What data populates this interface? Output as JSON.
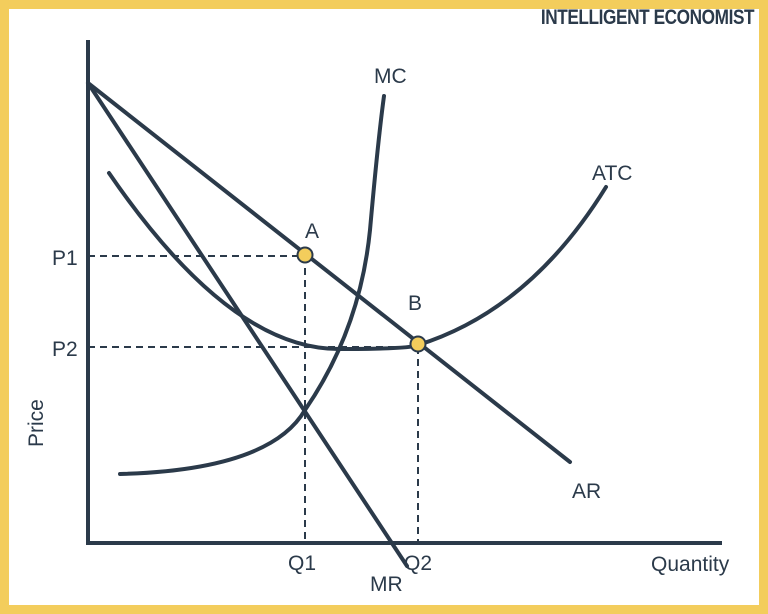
{
  "brand": "INTELLIGENT ECONOMIST",
  "axes": {
    "y_label": "Price",
    "x_label": "Quantity"
  },
  "curves": {
    "mc": "MC",
    "atc": "ATC",
    "ar": "AR",
    "mr": "MR"
  },
  "points": {
    "a": "A",
    "b": "B"
  },
  "ticks": {
    "p1": "P1",
    "p2": "P2",
    "q1": "Q1",
    "q2": "Q2"
  },
  "colors": {
    "line": "#2b3a4a",
    "point_fill": "#f3cd5c",
    "border": "#f3cd5c"
  }
}
